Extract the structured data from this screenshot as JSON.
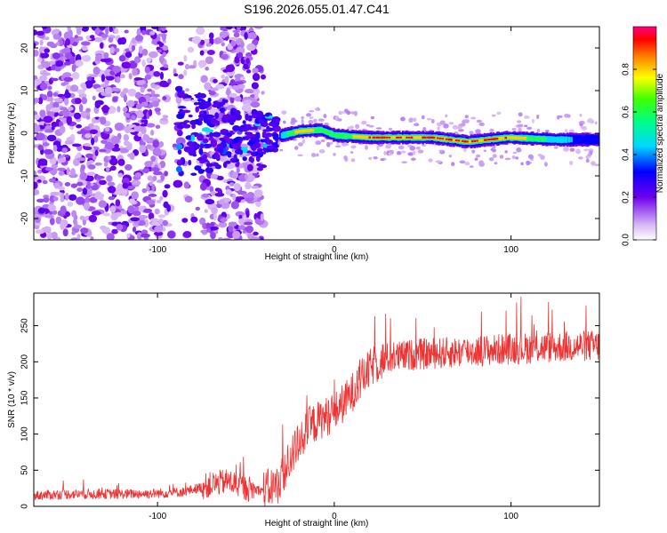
{
  "title": "S196.2026.055.01.47.C41",
  "chart_data": [
    {
      "type": "heatmap",
      "xlabel": "Height of straight line (km)",
      "ylabel": "Frequency (Hz)",
      "xlim": [
        -170,
        150
      ],
      "ylim": [
        -25,
        25
      ],
      "xticks": [
        -100,
        0,
        100
      ],
      "yticks": [
        -20,
        -10,
        0,
        10,
        20
      ],
      "colorbar": {
        "label": "Normalized spectral amplitude",
        "range": [
          0,
          1
        ],
        "ticks": [
          0.0,
          0.2,
          0.4,
          0.6,
          0.8
        ]
      },
      "ridge": {
        "description_points": [
          {
            "x": -30,
            "f": -0.5,
            "amp": 0.5
          },
          {
            "x": -20,
            "f": 0.5,
            "amp": 0.9
          },
          {
            "x": -8,
            "f": 0.8,
            "amp": 0.7
          },
          {
            "x": 0,
            "f": -0.5,
            "amp": 0.6
          },
          {
            "x": 20,
            "f": -1.0,
            "amp": 0.95
          },
          {
            "x": 55,
            "f": -1.0,
            "amp": 0.95
          },
          {
            "x": 75,
            "f": -2.0,
            "amp": 0.95
          },
          {
            "x": 98,
            "f": -1.0,
            "amp": 0.95
          },
          {
            "x": 125,
            "f": -1.5,
            "amp": 0.5
          },
          {
            "x": 150,
            "f": -1.5,
            "amp": 0.35
          }
        ]
      }
    },
    {
      "type": "line",
      "xlabel": "Height of straight line (km)",
      "ylabel": "SNR (10 * v/v)",
      "xlim": [
        -170,
        150
      ],
      "ylim": [
        0,
        295
      ],
      "xticks": [
        -100,
        0,
        100
      ],
      "yticks": [
        0,
        50,
        100,
        150,
        200,
        250
      ],
      "color": "#ee3333",
      "series": [
        {
          "name": "SNR",
          "x": [
            -170,
            -150,
            -120,
            -100,
            -85,
            -70,
            -60,
            -50,
            -40,
            -32,
            -26,
            -20,
            -14,
            -8,
            0,
            8,
            15,
            22,
            30,
            45,
            60,
            80,
            100,
            120,
            140,
            150
          ],
          "y": [
            15,
            17,
            17,
            18,
            20,
            30,
            35,
            25,
            22,
            30,
            60,
            90,
            110,
            120,
            130,
            150,
            175,
            195,
            205,
            210,
            212,
            215,
            218,
            220,
            222,
            222
          ]
        }
      ]
    }
  ]
}
